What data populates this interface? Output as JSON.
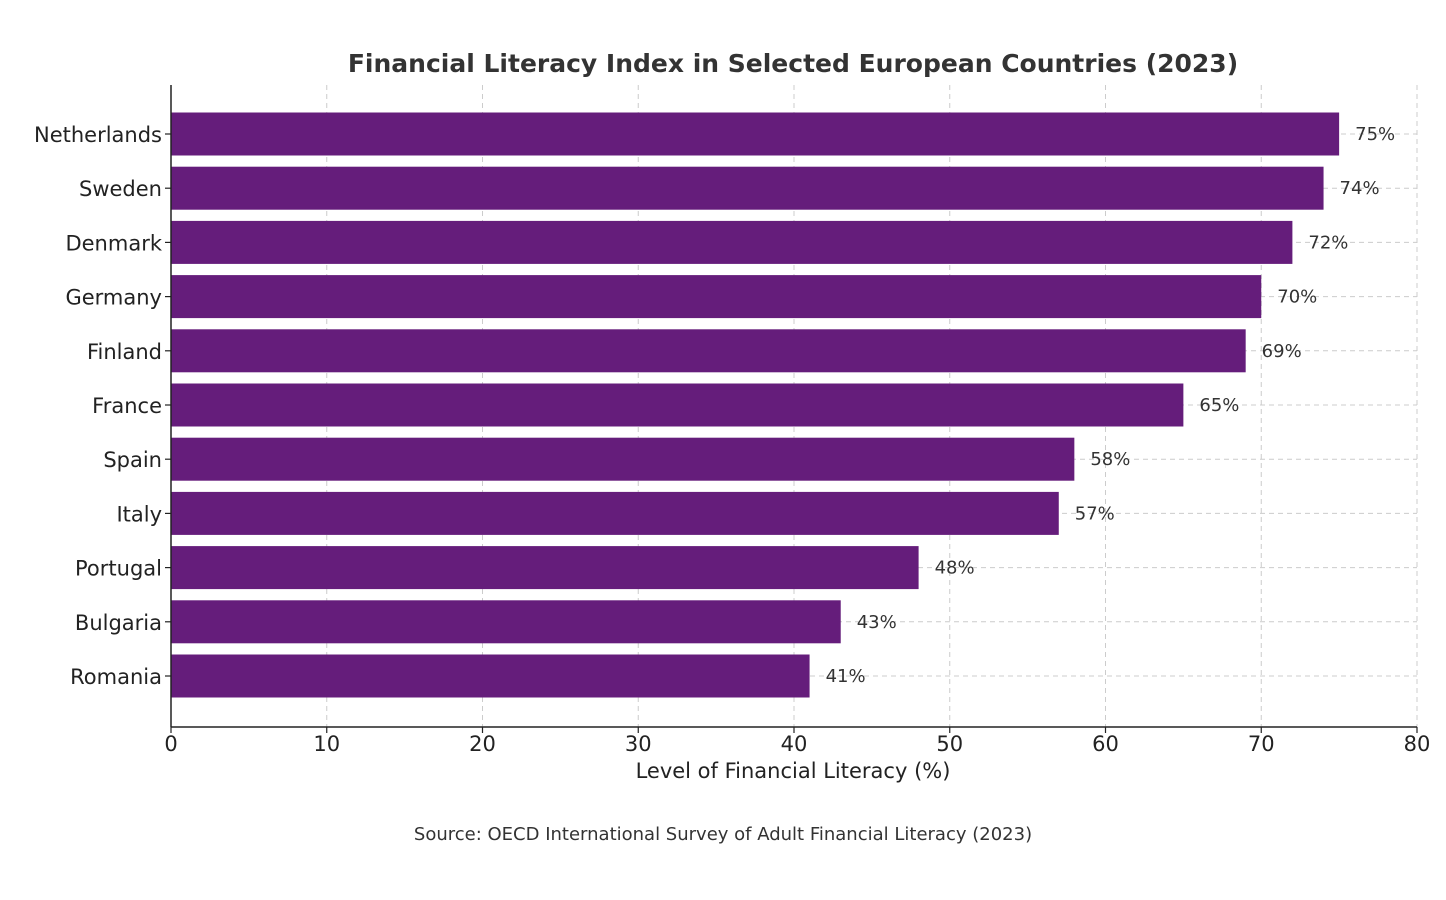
{
  "chart_data": {
    "type": "bar",
    "orientation": "horizontal",
    "title": "Financial Literacy Index in Selected European Countries (2023)",
    "xlabel": "Level of Financial Literacy (%)",
    "ylabel": "",
    "categories": [
      "Netherlands",
      "Sweden",
      "Denmark",
      "Germany",
      "Finland",
      "France",
      "Spain",
      "Italy",
      "Portugal",
      "Bulgaria",
      "Romania"
    ],
    "values": [
      75,
      74,
      72,
      70,
      69,
      65,
      58,
      57,
      48,
      43,
      41
    ],
    "data_labels": [
      "75%",
      "74%",
      "72%",
      "70%",
      "69%",
      "65%",
      "58%",
      "57%",
      "48%",
      "43%",
      "41%"
    ],
    "xlim": [
      0,
      80
    ],
    "xticks": [
      0,
      10,
      20,
      30,
      40,
      50,
      60,
      70,
      80
    ],
    "xtick_labels": [
      "0",
      "10",
      "20",
      "30",
      "40",
      "50",
      "60",
      "70",
      "80"
    ],
    "grid": true,
    "bar_color": "#651D7B",
    "source": "Source: OECD International Survey of Adult Financial Literacy (2023)"
  }
}
